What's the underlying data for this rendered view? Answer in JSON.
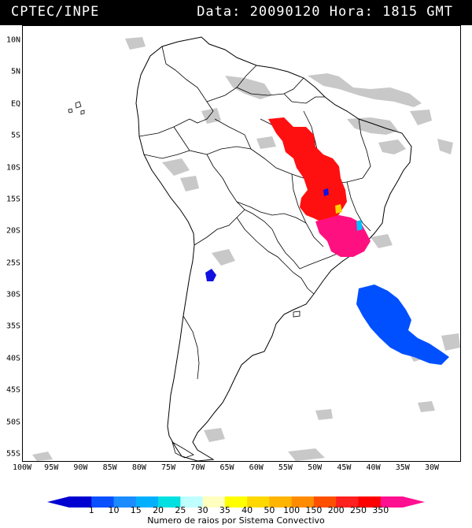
{
  "header": {
    "source": "CPTEC/INPE",
    "datetime": "Data: 20090120 Hora: 1815 GMT"
  },
  "map": {
    "lat_labels": [
      "10N",
      "5N",
      "EQ",
      "5S",
      "10S",
      "15S",
      "20S",
      "25S",
      "30S",
      "35S",
      "40S",
      "45S",
      "50S",
      "55S"
    ],
    "lat_values": [
      10,
      5,
      0,
      -5,
      -10,
      -15,
      -20,
      -25,
      -30,
      -35,
      -40,
      -45,
      -50,
      -55
    ],
    "lon_labels": [
      "100W",
      "95W",
      "90W",
      "85W",
      "80W",
      "75W",
      "70W",
      "65W",
      "60W",
      "55W",
      "50W",
      "45W",
      "40W",
      "35W",
      "30W"
    ],
    "lon_values": [
      -100,
      -95,
      -90,
      -85,
      -80,
      -75,
      -70,
      -65,
      -60,
      -55,
      -50,
      -45,
      -40,
      -35,
      -30
    ],
    "colors": {
      "land_outline": "#000000",
      "cloud": "#c8c8c8",
      "red": "#ff1010",
      "magenta": "#ff1080",
      "blue": "#0050ff",
      "dark_blue": "#1010e0",
      "yellow": "#ffd000",
      "cyan": "#00c0ff"
    }
  },
  "legend": {
    "labels": [
      "1",
      "10",
      "15",
      "20",
      "25",
      "30",
      "35",
      "40",
      "50",
      "100",
      "150",
      "200",
      "250",
      "350"
    ],
    "colors": [
      "#0000d0",
      "#0a50ff",
      "#1a8cff",
      "#00b0ff",
      "#00e0e0",
      "#c0ffff",
      "#ffffc0",
      "#ffff00",
      "#ffd800",
      "#ffb400",
      "#ff8c00",
      "#ff5000",
      "#ff2020",
      "#ff0000",
      "#ff1090"
    ],
    "caption": "Numero de raios por Sistema Convectivo"
  }
}
